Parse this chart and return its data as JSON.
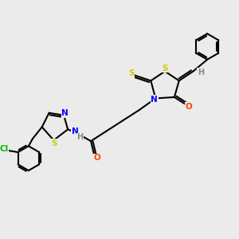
{
  "background_color": "#ebebeb",
  "atom_colors": {
    "S": "#cccc00",
    "N": "#0000ff",
    "O": "#ff4400",
    "Cl": "#00bb00",
    "C": "#000000",
    "H": "#888888"
  },
  "figsize": [
    3.0,
    3.0
  ],
  "dpi": 100
}
